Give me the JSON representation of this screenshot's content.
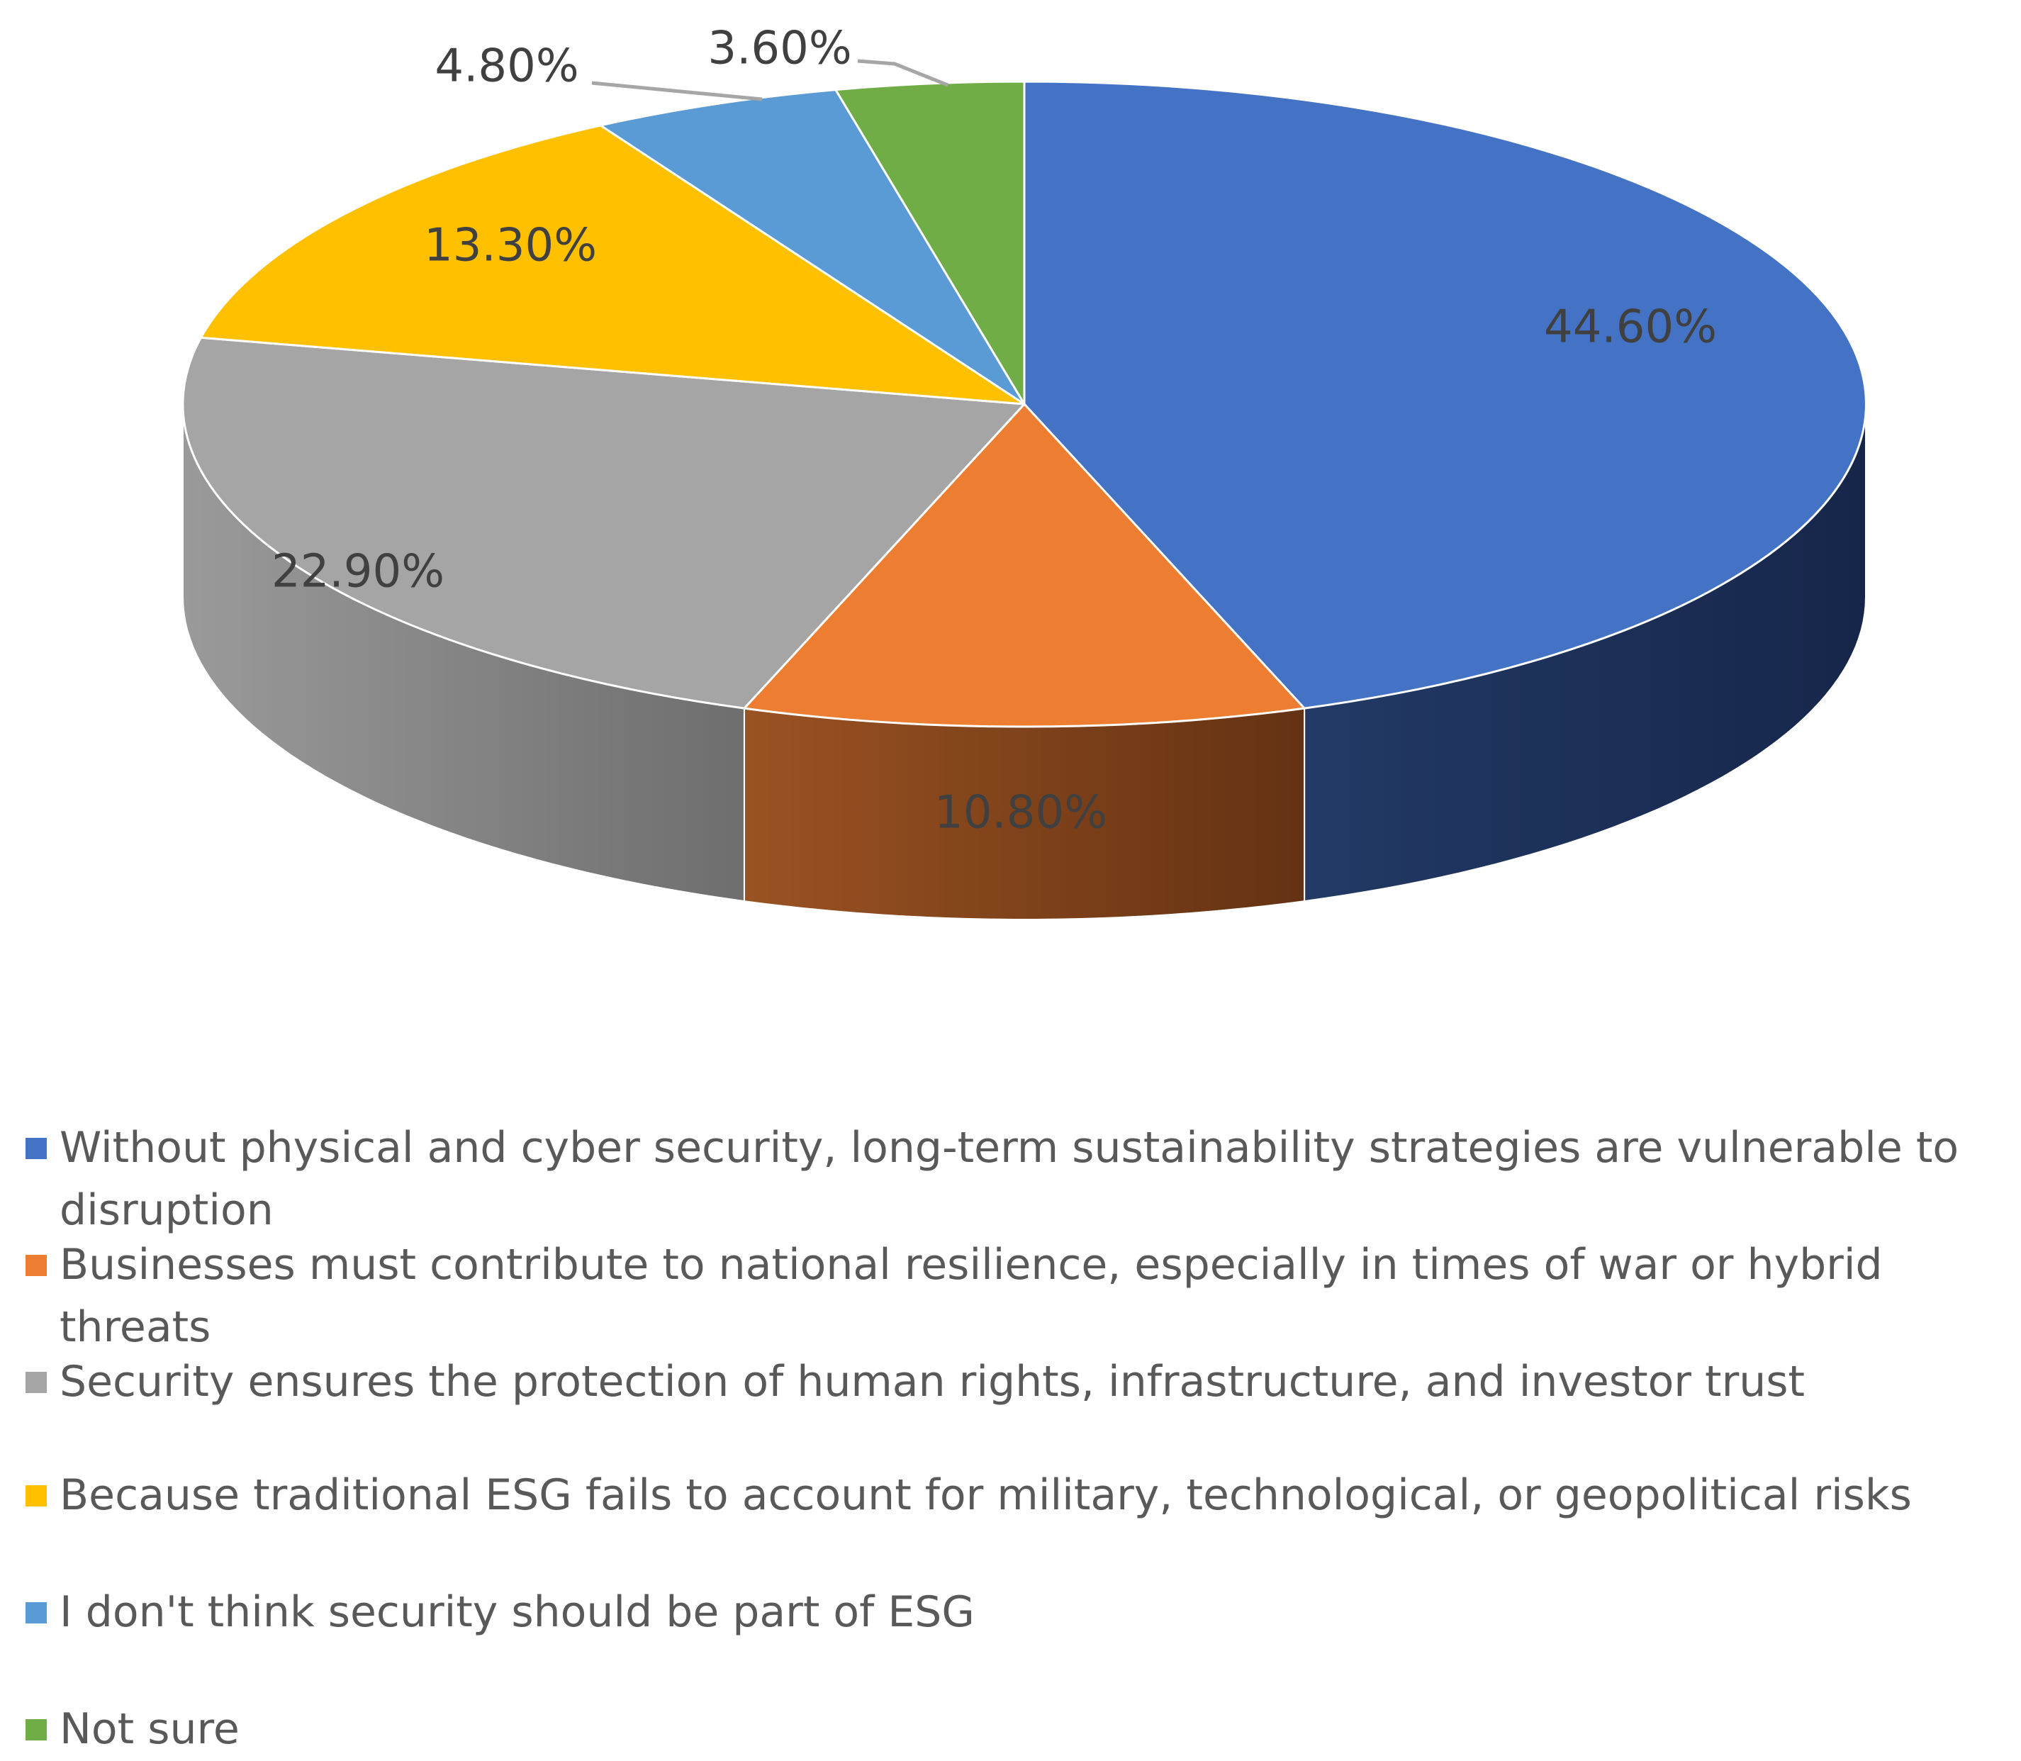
{
  "chart_data": {
    "type": "pie",
    "style": "3d",
    "start_angle_deg": 0,
    "direction": "clockwise",
    "legend_position": "bottom",
    "slices": [
      {
        "label": "Without physical and cyber security, long-term sustainability strategies are vulnerable to disruption",
        "value": 44.6,
        "display": "44.60%",
        "color": "#4472C4",
        "side_color": "#1A2B4D"
      },
      {
        "label": "Businesses must contribute to national resilience, especially in times of war or hybrid threats",
        "value": 10.8,
        "display": "10.80%",
        "color": "#ED7D31",
        "side_color": "#8A4520"
      },
      {
        "label": "Security ensures the protection of human rights, infrastructure, and investor trust",
        "value": 22.9,
        "display": "22.90%",
        "color": "#A5A5A5",
        "side_color": "#8C8C8C"
      },
      {
        "label": "Because traditional ESG fails to account for military, technological, or geopolitical risks",
        "value": 13.3,
        "display": "13.30%",
        "color": "#FFC000",
        "side_color": "#B38600"
      },
      {
        "label": "I don't think security should be part of  ESG",
        "value": 4.8,
        "display": "4.80%",
        "color": "#5B9BD5",
        "side_color": "#3C6B96"
      },
      {
        "label": "Not sure",
        "value": 3.6,
        "display": "3.60%",
        "color": "#70AD47",
        "side_color": "#4D7A30"
      }
    ]
  }
}
